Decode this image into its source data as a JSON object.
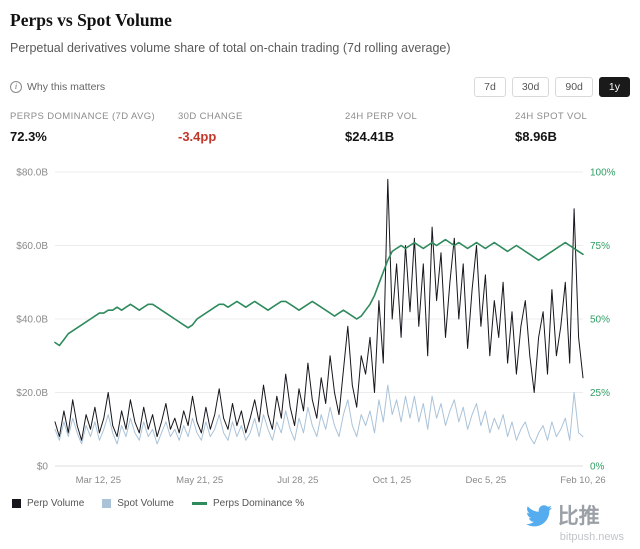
{
  "header": {
    "title": "Perps vs Spot Volume",
    "subtitle": "Perpetual derivatives volume share of total on-chain trading (7d rolling average)",
    "info_link": "Why this matters"
  },
  "icons": {
    "info_glyph": "i"
  },
  "range_buttons": [
    {
      "label": "7d",
      "active": false
    },
    {
      "label": "30d",
      "active": false
    },
    {
      "label": "90d",
      "active": false
    },
    {
      "label": "1y",
      "active": true
    }
  ],
  "stats": [
    {
      "label": "PERPS DOMINANCE (7D AVG)",
      "value": "72.3%"
    },
    {
      "label": "30D CHANGE",
      "value": "-3.4pp"
    },
    {
      "label": "24H PERP VOL",
      "value": "$24.41B"
    },
    {
      "label": "24H SPOT VOL",
      "value": "$8.96B"
    }
  ],
  "colors": {
    "negative": "#c0392b",
    "active_button_bg": "#1a1a1a",
    "perp_line": "#16161d",
    "spot_line": "#aac3d9",
    "dominance_line": "#2f8a5d"
  },
  "chart_data": {
    "type": "line",
    "title": "Perps vs Spot Volume",
    "x_ticks": [
      "Mar 12, 25",
      "May 21, 25",
      "Jul 28, 25",
      "Oct 1, 25",
      "Dec 5, 25",
      "Feb 10, 26"
    ],
    "x_tick_positions": [
      0.082,
      0.274,
      0.46,
      0.638,
      0.816,
      1.0
    ],
    "left_axis": {
      "ticks": [
        "$0",
        "$20.0B",
        "$40.0B",
        "$60.0B",
        "$80.0B"
      ],
      "min": 0,
      "max": 80,
      "label_color": "#8a8a8a"
    },
    "right_axis": {
      "ticks": [
        "0%",
        "25%",
        "50%",
        "75%",
        "100%"
      ],
      "min": 0,
      "max": 100,
      "label_color": "#2e9e62"
    },
    "grid": true,
    "legend_position": "bottom-left",
    "series": [
      {
        "name": "Perp Volume",
        "axis": "left",
        "color": "#16161d",
        "width": 1,
        "values": [
          12,
          8,
          15,
          9,
          18,
          11,
          7,
          14,
          10,
          16,
          9,
          13,
          20,
          11,
          8,
          15,
          10,
          18,
          12,
          9,
          16,
          10,
          14,
          8,
          12,
          17,
          10,
          13,
          9,
          15,
          11,
          19,
          12,
          9,
          16,
          10,
          14,
          21,
          13,
          10,
          17,
          11,
          15,
          9,
          13,
          18,
          12,
          22,
          14,
          10,
          19,
          13,
          25,
          16,
          11,
          21,
          15,
          28,
          18,
          13,
          24,
          17,
          30,
          20,
          14,
          26,
          38,
          22,
          16,
          30,
          25,
          35,
          20,
          45,
          28,
          78,
          40,
          55,
          35,
          60,
          42,
          62,
          38,
          55,
          30,
          65,
          45,
          58,
          35,
          50,
          62,
          40,
          55,
          32,
          48,
          60,
          38,
          52,
          30,
          45,
          35,
          50,
          28,
          42,
          25,
          38,
          45,
          30,
          20,
          35,
          42,
          25,
          48,
          30,
          38,
          50,
          28,
          70,
          35,
          24
        ]
      },
      {
        "name": "Spot Volume",
        "axis": "left",
        "color": "#aac3d9",
        "width": 1,
        "values": [
          10,
          7,
          12,
          8,
          13,
          9,
          6,
          11,
          8,
          12,
          7,
          10,
          14,
          9,
          6,
          11,
          8,
          13,
          9,
          7,
          12,
          8,
          10,
          6,
          9,
          12,
          8,
          10,
          7,
          11,
          8,
          13,
          9,
          7,
          12,
          8,
          10,
          14,
          9,
          7,
          12,
          8,
          11,
          7,
          9,
          13,
          8,
          14,
          10,
          7,
          12,
          9,
          15,
          10,
          7,
          13,
          9,
          16,
          11,
          8,
          14,
          10,
          16,
          11,
          8,
          14,
          18,
          11,
          8,
          14,
          11,
          15,
          9,
          18,
          12,
          22,
          14,
          18,
          12,
          19,
          13,
          19,
          12,
          17,
          10,
          19,
          13,
          17,
          11,
          15,
          18,
          12,
          16,
          10,
          14,
          17,
          11,
          15,
          9,
          13,
          10,
          14,
          8,
          12,
          7,
          10,
          12,
          8,
          6,
          9,
          11,
          7,
          12,
          8,
          10,
          13,
          7,
          20,
          9,
          8
        ]
      },
      {
        "name": "Perps Dominance %",
        "axis": "right",
        "color": "#2f8a5d",
        "width": 1.6,
        "values": [
          42,
          41,
          43,
          45,
          46,
          47,
          48,
          49,
          50,
          51,
          52,
          52,
          53,
          53,
          54,
          53,
          54,
          55,
          54,
          53,
          54,
          55,
          55,
          54,
          53,
          52,
          51,
          50,
          49,
          48,
          47,
          48,
          50,
          51,
          52,
          53,
          54,
          55,
          55,
          54,
          55,
          56,
          55,
          54,
          55,
          56,
          55,
          54,
          53,
          54,
          55,
          56,
          56,
          55,
          54,
          53,
          54,
          55,
          56,
          55,
          54,
          53,
          52,
          51,
          52,
          53,
          52,
          51,
          50,
          51,
          53,
          55,
          58,
          62,
          66,
          70,
          73,
          74,
          75,
          74,
          75,
          76,
          75,
          74,
          75,
          76,
          75,
          76,
          77,
          76,
          75,
          76,
          75,
          74,
          75,
          76,
          75,
          74,
          75,
          76,
          75,
          74,
          73,
          74,
          75,
          74,
          73,
          72,
          71,
          70,
          71,
          72,
          73,
          74,
          75,
          76,
          75,
          74,
          73,
          72
        ]
      }
    ]
  },
  "legend": [
    {
      "label": "Perp Volume",
      "swatch": "square",
      "color": "#16161d"
    },
    {
      "label": "Spot Volume",
      "swatch": "square",
      "color": "#aac3d9"
    },
    {
      "label": "Perps Dominance %",
      "swatch": "line",
      "color": "#2f8a5d"
    }
  ],
  "watermark": {
    "cn": "比推",
    "en": "bitpush.news"
  }
}
